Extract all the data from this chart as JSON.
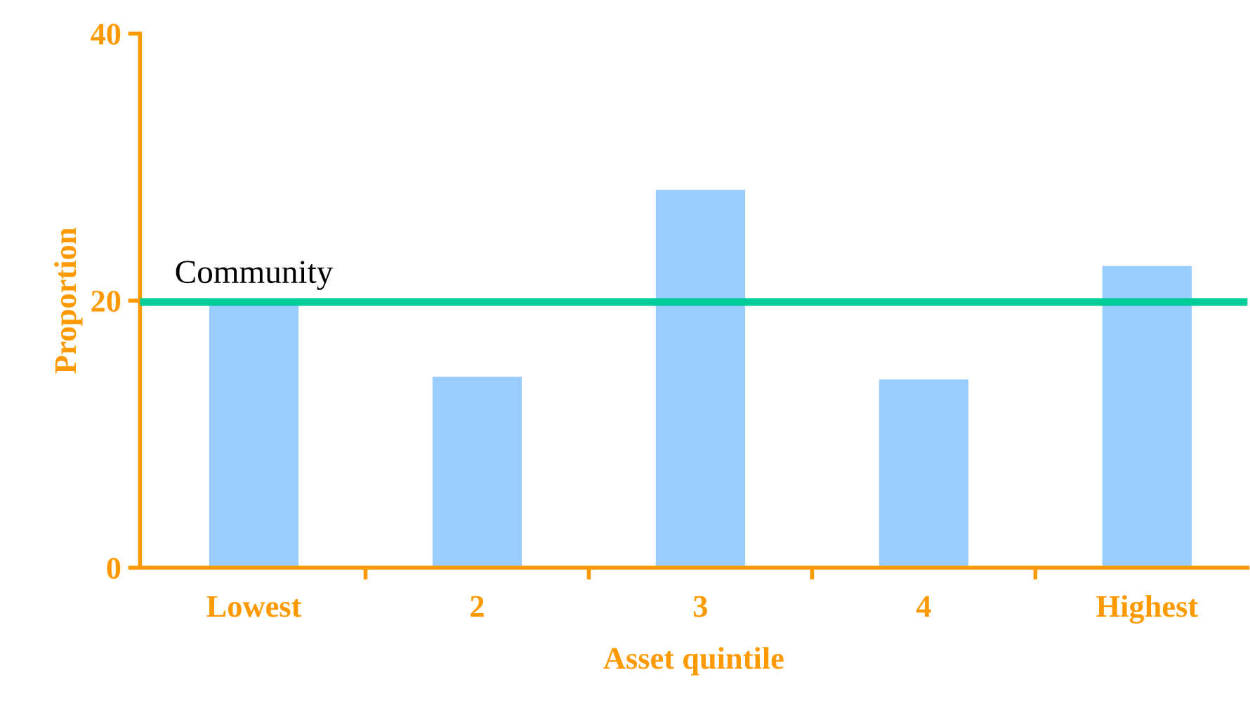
{
  "chart_data": {
    "type": "bar",
    "xlabel": "Asset quintile",
    "ylabel": "Proportion",
    "categories": [
      "Lowest",
      "2",
      "3",
      "4",
      "Highest"
    ],
    "values": [
      19.8,
      14.3,
      28.3,
      14.1,
      22.6
    ],
    "color": "#99ccff",
    "ylim": [
      0,
      40
    ],
    "yticks": [
      0,
      20,
      40
    ],
    "grid": false,
    "legend": false,
    "ref_lines": [
      {
        "axis": "y",
        "value": 19.9,
        "label": "Community",
        "color": "#00cc99",
        "line_style": "solid"
      }
    ]
  }
}
